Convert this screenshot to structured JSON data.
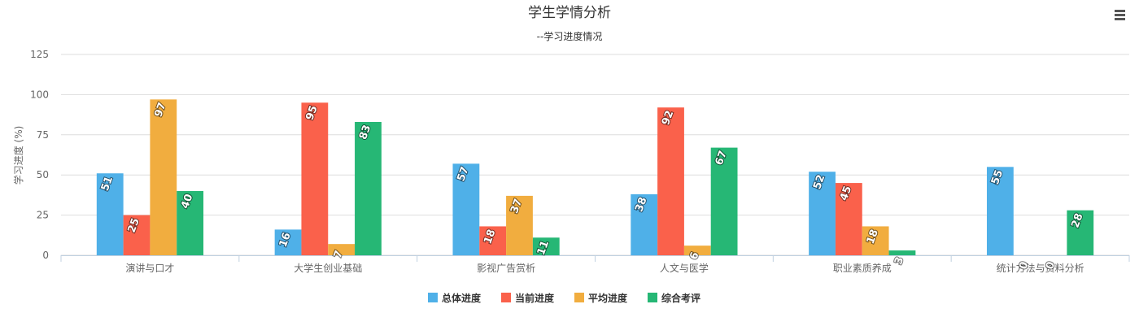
{
  "title": "学生学情分析",
  "subtitle": "--学习进度情况",
  "menu_icon": "hamburger-menu-icon",
  "chart_data": {
    "type": "bar",
    "title": "学生学情分析",
    "subtitle": "--学习进度情况",
    "xlabel": "",
    "ylabel": "学习进度 (%)",
    "ylim": [
      0,
      125
    ],
    "yticks": [
      "0",
      "25",
      "50",
      "75",
      "100",
      "125"
    ],
    "grid": true,
    "legend_position": "bottom",
    "categories": [
      "演讲与口才",
      "大学生创业基础",
      "影视广告赏析",
      "人文与医学",
      "职业素质养成",
      "统计方法与资料分析"
    ],
    "series": [
      {
        "name": "总体进度",
        "color": "#4fb0e8",
        "values": [
          51,
          16,
          57,
          38,
          52,
          55
        ]
      },
      {
        "name": "当前进度",
        "color": "#fa614b",
        "values": [
          25,
          95,
          18,
          92,
          45,
          0
        ]
      },
      {
        "name": "平均进度",
        "color": "#f1ad3f",
        "values": [
          97,
          7,
          37,
          6,
          18,
          0
        ]
      },
      {
        "name": "综合考评",
        "color": "#26b775",
        "values": [
          40,
          83,
          11,
          67,
          3,
          28
        ]
      }
    ]
  }
}
